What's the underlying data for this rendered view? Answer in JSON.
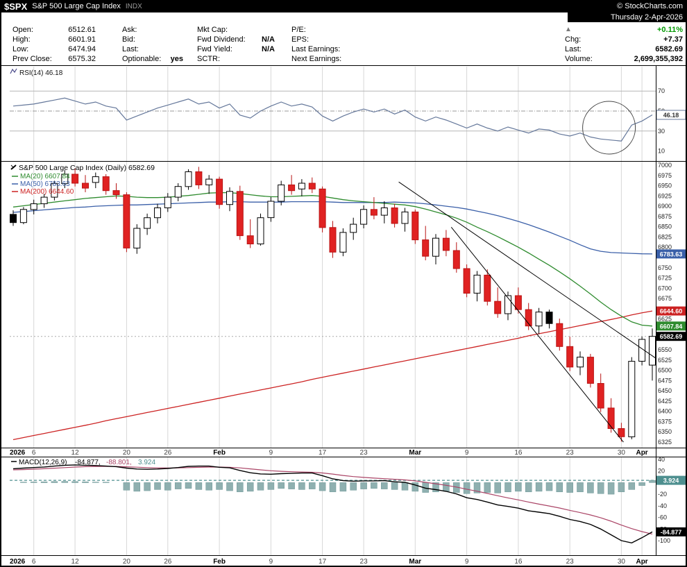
{
  "header": {
    "symbol": "$SPX",
    "name": "S&P 500 Large Cap Index",
    "exchange": "INDX",
    "copyright": "© StockCharts.com"
  },
  "quote": {
    "date": "Thursday 2-Apr-2026",
    "cols": [
      {
        "rows": [
          {
            "l": "Open:",
            "v": "6512.61",
            "b": 0
          },
          {
            "l": "High:",
            "v": "6601.91",
            "b": 0
          },
          {
            "l": "Low:",
            "v": "6474.94",
            "b": 0
          },
          {
            "l": "Prev Close:",
            "v": "6575.32",
            "b": 0
          }
        ]
      },
      {
        "rows": [
          {
            "l": "Ask:",
            "v": "",
            "b": 0
          },
          {
            "l": "Bid:",
            "v": "",
            "b": 0
          },
          {
            "l": "Last:",
            "v": "",
            "b": 0
          },
          {
            "l": "Optionable:",
            "v": "yes",
            "b": 1
          }
        ]
      },
      {
        "rows": [
          {
            "l": "Mkt Cap:",
            "v": "",
            "b": 0
          },
          {
            "l": "Fwd Dividend:",
            "v": "N/A",
            "b": 1
          },
          {
            "l": "Fwd Yield:",
            "v": "N/A",
            "b": 1
          },
          {
            "l": "SCTR:",
            "v": "",
            "b": 0
          }
        ]
      },
      {
        "rows": [
          {
            "l": "P/E:",
            "v": "",
            "b": 0
          },
          {
            "l": "EPS:",
            "v": "",
            "b": 0
          },
          {
            "l": "Last Earnings:",
            "v": "",
            "b": 0
          },
          {
            "l": "Next Earnings:",
            "v": "",
            "b": 0
          }
        ]
      }
    ],
    "right": {
      "pct": "+0.11%",
      "chg_label": "Chg:",
      "chg": "+7.37",
      "last_label": "Last:",
      "last": "6582.69",
      "vol_label": "Volume:",
      "vol": "2,699,355,392"
    }
  },
  "chart_data": {
    "type": "candlestick",
    "title": "S&P 500 Large Cap Index (Daily) 6582.69",
    "price_axis": {
      "min": 6325,
      "max": 7000,
      "step": 25
    },
    "last_price": 6582.69,
    "x_labels": [
      {
        "t": "2026",
        "i": 0,
        "b": 1,
        "g": 0
      },
      {
        "t": "6",
        "i": 2,
        "b": 0,
        "g": 1
      },
      {
        "t": "12",
        "i": 6,
        "b": 0,
        "g": 1
      },
      {
        "t": "20",
        "i": 11,
        "b": 0,
        "g": 1
      },
      {
        "t": "26",
        "i": 15,
        "b": 0,
        "g": 1
      },
      {
        "t": "Feb",
        "i": 20,
        "b": 1,
        "g": 1
      },
      {
        "t": "9",
        "i": 25,
        "b": 0,
        "g": 1
      },
      {
        "t": "17",
        "i": 30,
        "b": 0,
        "g": 1
      },
      {
        "t": "23",
        "i": 34,
        "b": 0,
        "g": 1
      },
      {
        "t": "Mar",
        "i": 39,
        "b": 1,
        "g": 1
      },
      {
        "t": "9",
        "i": 44,
        "b": 0,
        "g": 1
      },
      {
        "t": "16",
        "i": 49,
        "b": 0,
        "g": 1
      },
      {
        "t": "23",
        "i": 54,
        "b": 0,
        "g": 1
      },
      {
        "t": "30",
        "i": 59,
        "b": 0,
        "g": 1
      },
      {
        "t": "Apr",
        "i": 61,
        "b": 1,
        "g": 1
      }
    ],
    "candles": [
      [
        6880,
        6890,
        6852,
        6860,
        "b"
      ],
      [
        6860,
        6898,
        6856,
        6892,
        "w"
      ],
      [
        6892,
        6916,
        6880,
        6906,
        "w"
      ],
      [
        6906,
        6930,
        6896,
        6922,
        "w"
      ],
      [
        6922,
        6962,
        6914,
        6955,
        "w"
      ],
      [
        6955,
        6988,
        6944,
        6978,
        "w"
      ],
      [
        6978,
        6992,
        6948,
        6956,
        "r"
      ],
      [
        6956,
        6976,
        6934,
        6944,
        "r"
      ],
      [
        6958,
        6982,
        6944,
        6972,
        "w"
      ],
      [
        6972,
        6978,
        6928,
        6938,
        "r"
      ],
      [
        6938,
        6956,
        6918,
        6928,
        "r"
      ],
      [
        6928,
        6934,
        6788,
        6798,
        "r"
      ],
      [
        6798,
        6856,
        6784,
        6846,
        "w"
      ],
      [
        6846,
        6882,
        6830,
        6872,
        "w"
      ],
      [
        6872,
        6906,
        6858,
        6896,
        "w"
      ],
      [
        6896,
        6932,
        6886,
        6922,
        "w"
      ],
      [
        6922,
        6956,
        6912,
        6948,
        "w"
      ],
      [
        6948,
        6990,
        6940,
        6984,
        "w"
      ],
      [
        6984,
        6996,
        6942,
        6952,
        "r"
      ],
      [
        6952,
        6976,
        6930,
        6966,
        "w"
      ],
      [
        6966,
        6972,
        6894,
        6904,
        "r"
      ],
      [
        6904,
        6946,
        6888,
        6936,
        "w"
      ],
      [
        6936,
        6950,
        6818,
        6828,
        "r"
      ],
      [
        6828,
        6868,
        6798,
        6808,
        "r"
      ],
      [
        6808,
        6882,
        6804,
        6872,
        "w"
      ],
      [
        6872,
        6922,
        6862,
        6912,
        "w"
      ],
      [
        6912,
        6962,
        6902,
        6952,
        "w"
      ],
      [
        6952,
        6976,
        6928,
        6938,
        "r"
      ],
      [
        6942,
        6966,
        6924,
        6956,
        "w"
      ],
      [
        6956,
        6970,
        6932,
        6942,
        "r"
      ],
      [
        6942,
        6948,
        6836,
        6848,
        "r"
      ],
      [
        6848,
        6864,
        6774,
        6788,
        "r"
      ],
      [
        6788,
        6846,
        6778,
        6836,
        "w"
      ],
      [
        6836,
        6872,
        6818,
        6856,
        "w"
      ],
      [
        6856,
        6902,
        6846,
        6892,
        "w"
      ],
      [
        6892,
        6922,
        6868,
        6878,
        "r"
      ],
      [
        6878,
        6912,
        6858,
        6896,
        "w"
      ],
      [
        6896,
        6906,
        6848,
        6858,
        "r"
      ],
      [
        6858,
        6896,
        6838,
        6886,
        "w"
      ],
      [
        6886,
        6892,
        6808,
        6818,
        "r"
      ],
      [
        6818,
        6852,
        6768,
        6778,
        "r"
      ],
      [
        6778,
        6832,
        6758,
        6822,
        "w"
      ],
      [
        6822,
        6842,
        6778,
        6792,
        "r"
      ],
      [
        6792,
        6812,
        6738,
        6748,
        "r"
      ],
      [
        6748,
        6758,
        6678,
        6688,
        "r"
      ],
      [
        6688,
        6742,
        6668,
        6732,
        "w"
      ],
      [
        6732,
        6746,
        6658,
        6668,
        "r"
      ],
      [
        6668,
        6702,
        6628,
        6638,
        "r"
      ],
      [
        6638,
        6692,
        6622,
        6682,
        "w"
      ],
      [
        6682,
        6702,
        6638,
        6648,
        "r"
      ],
      [
        6648,
        6664,
        6598,
        6608,
        "r"
      ],
      [
        6608,
        6652,
        6588,
        6642,
        "w"
      ],
      [
        6642,
        6648,
        6602,
        6614,
        "b"
      ],
      [
        6614,
        6626,
        6548,
        6558,
        "r"
      ],
      [
        6558,
        6582,
        6498,
        6508,
        "r"
      ],
      [
        6508,
        6546,
        6488,
        6532,
        "w"
      ],
      [
        6532,
        6540,
        6458,
        6468,
        "r"
      ],
      [
        6468,
        6492,
        6398,
        6408,
        "r"
      ],
      [
        6408,
        6432,
        6348,
        6358,
        "r"
      ],
      [
        6358,
        6372,
        6326,
        6338,
        "r"
      ],
      [
        6338,
        6532,
        6332,
        6522,
        "w"
      ],
      [
        6522,
        6582,
        6512,
        6575.32,
        "w"
      ],
      [
        6512.61,
        6601.91,
        6474.94,
        6582.69,
        "w"
      ]
    ],
    "candle_colors": {
      "w": {
        "fill": "#ffffff",
        "stroke": "#000000"
      },
      "r": {
        "fill": "#e02222",
        "stroke": "#b81414"
      },
      "b": {
        "fill": "#000000",
        "stroke": "#000000"
      }
    },
    "ma20": [
      6898,
      6901,
      6904,
      6907,
      6910,
      6913,
      6916,
      6919,
      6921,
      6923,
      6925,
      6924,
      6922,
      6921,
      6921,
      6922,
      6924,
      6926,
      6929,
      6932,
      6933,
      6933,
      6931,
      6928,
      6925,
      6923,
      6923,
      6924,
      6925,
      6926,
      6924,
      6920,
      6916,
      6913,
      6911,
      6909,
      6907,
      6905,
      6903,
      6899,
      6893,
      6886,
      6879,
      6871,
      6861,
      6849,
      6838,
      6826,
      6813,
      6800,
      6786,
      6771,
      6756,
      6740,
      6723,
      6705,
      6686,
      6666,
      6648,
      6632,
      6618,
      6610,
      6607.84
    ],
    "ma50": [
      6885,
      6887,
      6889,
      6891,
      6893,
      6895,
      6897,
      6898,
      6900,
      6901,
      6902,
      6903,
      6903,
      6904,
      6905,
      6906,
      6907,
      6908,
      6909,
      6910,
      6910,
      6911,
      6911,
      6910,
      6910,
      6910,
      6910,
      6911,
      6911,
      6911,
      6911,
      6910,
      6909,
      6909,
      6909,
      6909,
      6909,
      6910,
      6909,
      6908,
      6906,
      6903,
      6900,
      6897,
      6893,
      6888,
      6883,
      6877,
      6870,
      6863,
      6855,
      6846,
      6837,
      6827,
      6817,
      6806,
      6796,
      6790,
      6787,
      6786,
      6785,
      6784,
      6783.63
    ],
    "ma200": [
      6331,
      6336,
      6341,
      6346,
      6351,
      6356,
      6361,
      6366,
      6371,
      6377,
      6382,
      6387,
      6392,
      6397,
      6402,
      6407,
      6412,
      6417,
      6422,
      6427,
      6432,
      6437,
      6442,
      6447,
      6452,
      6457,
      6462,
      6467,
      6472,
      6478,
      6483,
      6488,
      6493,
      6498,
      6503,
      6508,
      6513,
      6518,
      6523,
      6528,
      6533,
      6538,
      6543,
      6548,
      6553,
      6558,
      6563,
      6568,
      6573,
      6578,
      6584,
      6589,
      6594,
      6599,
      6604,
      6609,
      6614,
      6619,
      6624,
      6629,
      6635,
      6640,
      6644.6
    ],
    "ma_legend": [
      {
        "label": "MA(20) 6607.84",
        "color": "#2e8b2e"
      },
      {
        "label": "MA(50) 6783.63",
        "color": "#3a5fa8"
      },
      {
        "label": "MA(200) 6644.60",
        "color": "#cc2222"
      }
    ],
    "price_boxes": [
      {
        "v": 6783.63,
        "t": "6783.63",
        "c": "#3a5fa8"
      },
      {
        "v": 6644.6,
        "t": "6644.60",
        "c": "#cc2222"
      },
      {
        "v": 6607.84,
        "t": "6607.84",
        "c": "#2e8b2e"
      },
      {
        "v": 6582.69,
        "t": "6582.69",
        "c": "#000000"
      }
    ],
    "trendlines": [
      {
        "i1": 37.4,
        "p1": 6959,
        "i2": 62.3,
        "p2": 6530
      },
      {
        "i1": 42.5,
        "p1": 6849,
        "i2": 59.2,
        "p2": 6325
      }
    ],
    "rsi": {
      "label": "RSI(14) 46.18",
      "last": "46.18",
      "line_color": "#64779a",
      "levels": [
        70,
        30
      ],
      "mid": 50,
      "axis_ticks": [
        70,
        50,
        30,
        10
      ],
      "values": [
        55,
        56,
        57,
        59,
        61,
        63,
        60,
        57,
        59,
        55,
        53,
        41,
        45,
        49,
        53,
        56,
        59,
        62,
        57,
        59,
        53,
        57,
        46,
        43,
        50,
        55,
        59,
        55,
        57,
        54,
        45,
        40,
        45,
        49,
        52,
        49,
        52,
        47,
        51,
        44,
        40,
        44,
        41,
        37,
        33,
        37,
        33,
        30,
        34,
        31,
        28,
        32,
        31,
        27,
        25,
        28,
        24,
        22,
        21,
        20,
        36,
        40,
        46.18
      ],
      "circle": {
        "i": 57.8,
        "v": 33.3,
        "r": 38
      }
    },
    "macd": {
      "legend": {
        "name": "MACD(12,26,9)",
        "v1": "-84.877,",
        "v2": "-88.801,",
        "v3": "3.924"
      },
      "axis": {
        "min": -100,
        "max": 40,
        "step": 20
      },
      "ref": 3.924,
      "colors": {
        "macd": "#000000",
        "signal": "#aa4466",
        "hist": "#8fb0b0",
        "hist_stroke": "#6a9494",
        "ref": "#4e8f8f"
      },
      "boxes": [
        {
          "v": 3.924,
          "t": "3.924",
          "c": "#4e8f8f"
        },
        {
          "v": -84.877,
          "t": "-84.877",
          "c": "#000000"
        }
      ],
      "macd_line": [
        24,
        25,
        26,
        27,
        28.5,
        30,
        30.5,
        30,
        29.5,
        28.5,
        27.5,
        25,
        23.5,
        23,
        23.5,
        24.5,
        26,
        28,
        28.5,
        28.5,
        26.5,
        25.5,
        21,
        17,
        15,
        14.5,
        15.5,
        16,
        16.5,
        16.5,
        12,
        6.5,
        3.5,
        2.5,
        3,
        3,
        3.5,
        1.5,
        0.5,
        -4,
        -9.5,
        -12,
        -15,
        -19.5,
        -26,
        -29,
        -33.5,
        -38.5,
        -41,
        -44,
        -48.5,
        -51,
        -53.5,
        -58,
        -63.5,
        -67,
        -72,
        -80,
        -90,
        -100,
        -104,
        -95,
        -84.877
      ],
      "signal_line": [
        22,
        22.5,
        23.2,
        24,
        24.9,
        25.9,
        26.8,
        27.5,
        27.9,
        28,
        27.9,
        27.3,
        26.6,
        25.9,
        25.4,
        25.2,
        25.4,
        25.9,
        26.4,
        26.8,
        26.8,
        26.5,
        25.4,
        23.7,
        22,
        20.5,
        19.5,
        18.8,
        18.3,
        17.9,
        16.7,
        14.7,
        12.4,
        10.4,
        9,
        7.8,
        6.9,
        5.8,
        4.7,
        3,
        0.5,
        -2,
        -4.6,
        -7.6,
        -11.3,
        -14.8,
        -18.6,
        -22.6,
        -26.3,
        -29.8,
        -33.5,
        -37,
        -40.3,
        -43.8,
        -47.8,
        -51.6,
        -55.7,
        -60.6,
        -66.5,
        -73.2,
        -79.3,
        -84.5,
        -88.801
      ],
      "hist": [
        0.5,
        1,
        1.2,
        1.5,
        2,
        2.2,
        2,
        1.5,
        1,
        0.8,
        0.5,
        -13,
        -15,
        -14,
        -12,
        -13,
        -11,
        -10,
        -12,
        -13,
        -12,
        -14,
        -16,
        -15,
        -13,
        -12,
        -10,
        -11,
        -12,
        -11,
        -14,
        -16,
        -15,
        -13,
        -11,
        -10,
        -11,
        -12,
        -13,
        -15,
        -17,
        -16,
        -15,
        -17,
        -19,
        -18,
        -17,
        -18,
        -16,
        -15,
        -16,
        -15,
        -14,
        -16,
        -17,
        -16,
        -18,
        -19,
        -20,
        -16,
        -12,
        -5,
        3.924
      ]
    }
  }
}
